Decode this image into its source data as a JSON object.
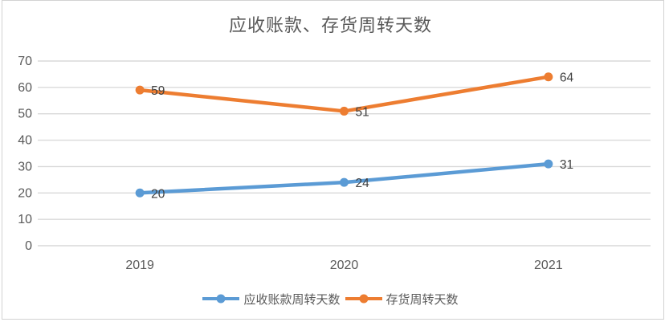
{
  "chart_data": {
    "type": "line",
    "title": "应收账款、存货周转天数",
    "categories": [
      "2019",
      "2020",
      "2021"
    ],
    "series": [
      {
        "name": "应收账款周转天数",
        "color": "#5B9BD5",
        "values": [
          20,
          24,
          31
        ]
      },
      {
        "name": "存货周转天数",
        "color": "#ED7D31",
        "values": [
          59,
          51,
          64
        ]
      }
    ],
    "xlabel": "",
    "ylabel": "",
    "ylim": [
      0,
      70
    ],
    "ytick_interval": 10,
    "ytick_labels": [
      "0",
      "10",
      "20",
      "30",
      "40",
      "50",
      "60",
      "70"
    ],
    "grid": true,
    "data_labels": true,
    "legend_position": "bottom"
  },
  "styles": {
    "title_color": "#595959",
    "axis_label_color": "#595959",
    "data_label_color": "#404040",
    "gridline_color": "#D9D9D9",
    "frame_border_color": "#D2D2D2",
    "background_color": "#FFFFFF"
  }
}
